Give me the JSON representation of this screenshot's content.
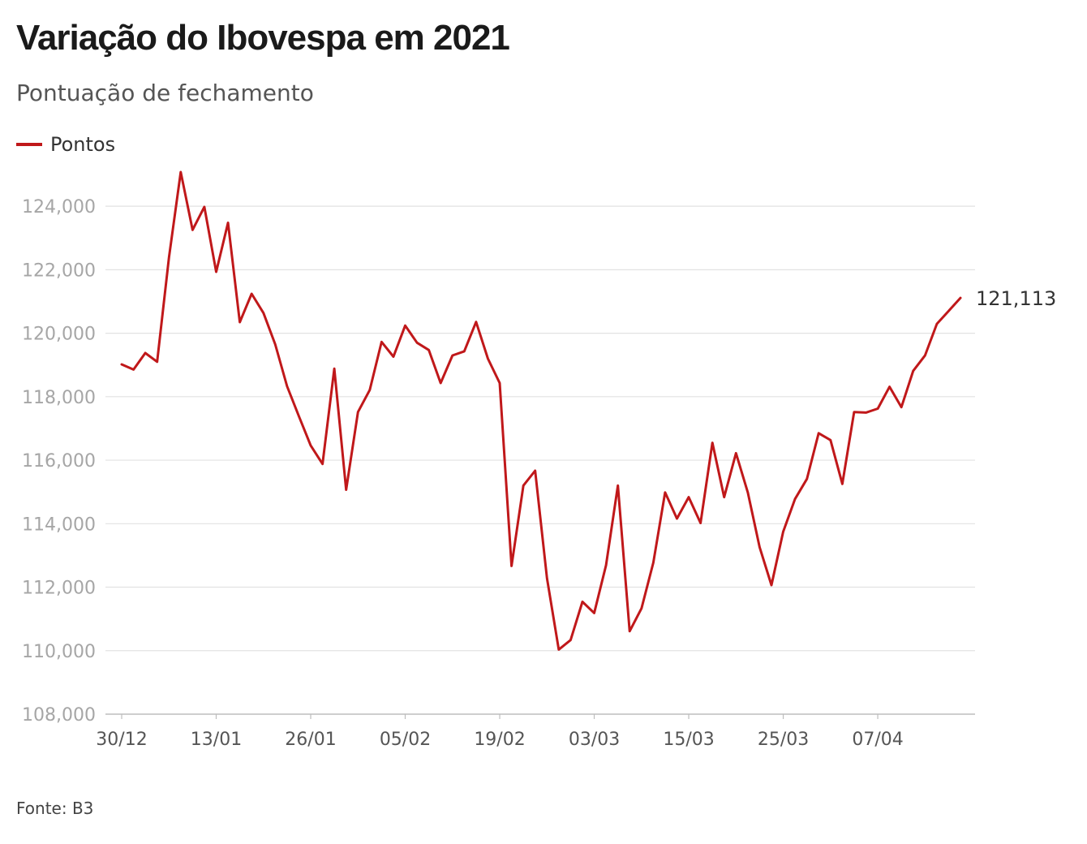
{
  "header": {
    "title": "Variação do Ibovespa em 2021",
    "subtitle": "Pontuação de fechamento"
  },
  "legend": {
    "label": "Pontos",
    "color": "#c0181a"
  },
  "source": "Fonte: B3",
  "chart_data": {
    "type": "line",
    "title": "Variação do Ibovespa em 2021",
    "subtitle": "Pontuação de fechamento",
    "xlabel": "",
    "ylabel": "",
    "ylim": [
      108000,
      125000
    ],
    "y_ticks": [
      108000,
      110000,
      112000,
      114000,
      116000,
      118000,
      120000,
      122000,
      124000
    ],
    "y_tick_labels": [
      "108,000",
      "110,000",
      "112,000",
      "114,000",
      "116,000",
      "118,000",
      "120,000",
      "122,000",
      "124,000"
    ],
    "x_tick_labels": [
      {
        "label": "30/12",
        "index": 0
      },
      {
        "label": "13/01",
        "index": 8
      },
      {
        "label": "26/01",
        "index": 16
      },
      {
        "label": "05/02",
        "index": 24
      },
      {
        "label": "19/02",
        "index": 32
      },
      {
        "label": "03/03",
        "index": 40
      },
      {
        "label": "15/03",
        "index": 48
      },
      {
        "label": "25/03",
        "index": 56
      },
      {
        "label": "07/04",
        "index": 64
      }
    ],
    "grid": true,
    "legend_position": "top-left",
    "end_label": "121,113",
    "series": [
      {
        "name": "Pontos",
        "color": "#c0181a",
        "values": [
          119017,
          118855,
          119376,
          119101,
          122386,
          125077,
          123255,
          123980,
          121933,
          123480,
          120348,
          121241,
          120636,
          119646,
          118329,
          117381,
          116464,
          115882,
          118883,
          115068,
          117518,
          118210,
          119725,
          119261,
          120240,
          119701,
          119471,
          118431,
          119300,
          119429,
          120356,
          119198,
          118431,
          112668,
          115202,
          115668,
          112282,
          110035,
          110335,
          111540,
          111184,
          112690,
          115202,
          110612,
          111331,
          112776,
          114983,
          114160,
          114835,
          114020,
          116549,
          114835,
          116222,
          114981,
          113262,
          112064,
          113750,
          114780,
          115408,
          116849,
          116634,
          115253,
          117518,
          117499,
          117624,
          118313,
          117670,
          118812,
          119297,
          120294,
          120700,
          121113
        ]
      }
    ]
  }
}
